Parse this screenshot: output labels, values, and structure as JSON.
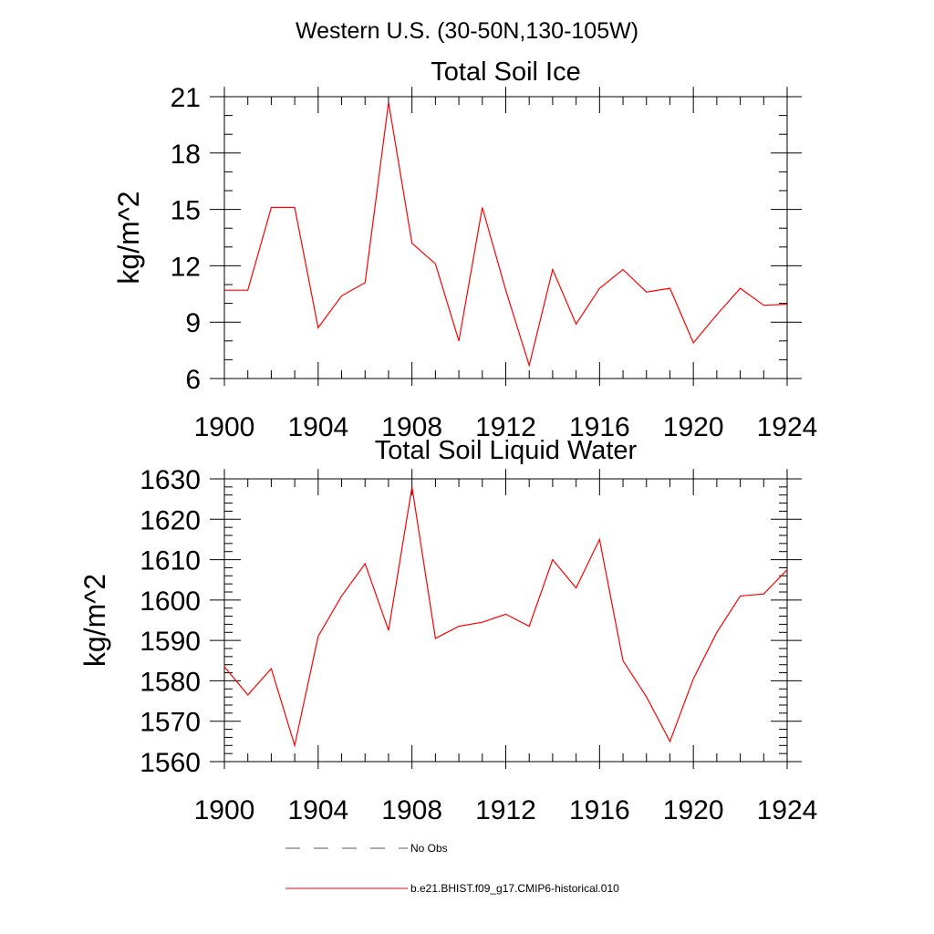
{
  "figure_title": "Western U.S. (30-50N,130-105W)",
  "chart_data": [
    {
      "type": "line",
      "title": "Total Soil Ice",
      "xlabel": "",
      "ylabel": "kg/m^2",
      "xlim": [
        1900,
        1924
      ],
      "ylim": [
        6,
        21
      ],
      "x_ticks": [
        1900,
        1904,
        1908,
        1912,
        1916,
        1920,
        1924
      ],
      "y_ticks": [
        6,
        9,
        12,
        15,
        18,
        21
      ],
      "grid": false,
      "series": [
        {
          "name": "b.e21.BHIST.f09_g17.CMIP6-historical.010",
          "color": "#ff0000",
          "x": [
            1900,
            1901,
            1902,
            1903,
            1904,
            1905,
            1906,
            1907,
            1908,
            1909,
            1910,
            1911,
            1912,
            1913,
            1914,
            1915,
            1916,
            1917,
            1918,
            1919,
            1920,
            1921,
            1922,
            1923,
            1924
          ],
          "values": [
            10.7,
            10.7,
            15.1,
            15.1,
            8.7,
            10.4,
            11.1,
            20.7,
            13.2,
            12.1,
            8.0,
            15.1,
            10.7,
            6.7,
            11.8,
            8.9,
            10.8,
            11.8,
            10.6,
            10.8,
            7.9,
            9.4,
            10.8,
            9.9,
            9.95
          ]
        }
      ]
    },
    {
      "type": "line",
      "title": "Total Soil Liquid Water",
      "xlabel": "",
      "ylabel": "kg/m^2",
      "xlim": [
        1900,
        1924
      ],
      "ylim": [
        1560,
        1630
      ],
      "x_ticks": [
        1900,
        1904,
        1908,
        1912,
        1916,
        1920,
        1924
      ],
      "y_ticks": [
        1560,
        1570,
        1580,
        1590,
        1600,
        1610,
        1620,
        1630
      ],
      "grid": false,
      "series": [
        {
          "name": "b.e21.BHIST.f09_g17.CMIP6-historical.010",
          "color": "#ff0000",
          "x": [
            1900,
            1901,
            1902,
            1903,
            1904,
            1905,
            1906,
            1907,
            1908,
            1909,
            1910,
            1911,
            1912,
            1913,
            1914,
            1915,
            1916,
            1917,
            1918,
            1919,
            1920,
            1921,
            1922,
            1923,
            1924
          ],
          "values": [
            1583.5,
            1576.5,
            1583,
            1564,
            1591,
            1601,
            1609,
            1592.5,
            1628,
            1590.5,
            1593.5,
            1594.5,
            1596.5,
            1593.5,
            1610,
            1603,
            1615,
            1585,
            1576,
            1565,
            1580.5,
            1592,
            1601,
            1601.5,
            1607.5
          ]
        }
      ]
    }
  ],
  "legend": [
    {
      "label": "No Obs",
      "color": "#555577",
      "style": "dashed"
    },
    {
      "label": "b.e21.BHIST.f09_g17.CMIP6-historical.010",
      "color": "#ff0000",
      "style": "solid"
    }
  ]
}
